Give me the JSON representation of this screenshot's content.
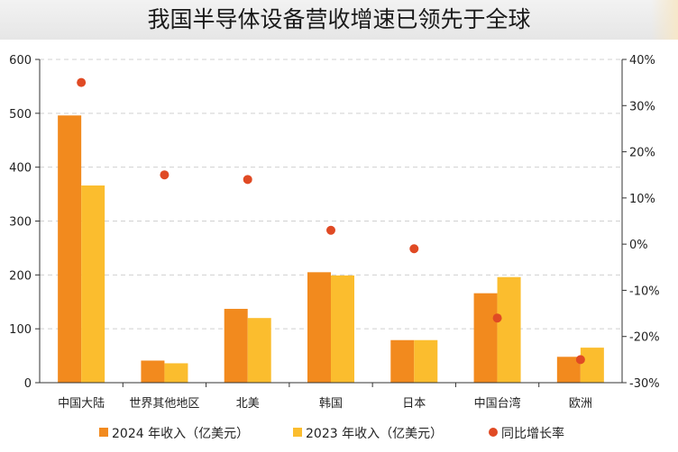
{
  "chart_data": {
    "type": "bar",
    "title": "我国半导体设备营收增速已领先于全球",
    "categories": [
      "中国大陆",
      "世界其他地区",
      "北美",
      "韩国",
      "日本",
      "中国台湾",
      "欧洲"
    ],
    "series": [
      {
        "name": "2024 年收入（亿美元）",
        "type": "bar",
        "axis": "left",
        "color": "#f28a1e",
        "values": [
          496,
          41,
          137,
          205,
          79,
          166,
          48
        ]
      },
      {
        "name": "2023 年收入（亿美元）",
        "type": "bar",
        "axis": "left",
        "color": "#fbbd2e",
        "values": [
          366,
          36,
          120,
          199,
          79,
          196,
          65
        ]
      },
      {
        "name": "同比增长率",
        "type": "scatter",
        "axis": "right",
        "color": "#e04a24",
        "values": [
          35,
          15,
          14,
          3,
          -1,
          -16,
          -25
        ]
      }
    ],
    "ylim": [
      0,
      600
    ],
    "yticks": [
      "0",
      "100",
      "200",
      "300",
      "400",
      "500",
      "600"
    ],
    "y2lim": [
      -30,
      40
    ],
    "y2ticks": [
      "-30%",
      "-20%",
      "-10%",
      "0%",
      "10%",
      "20%",
      "30%",
      "40%"
    ],
    "grid": true,
    "legend_position": "bottom"
  }
}
